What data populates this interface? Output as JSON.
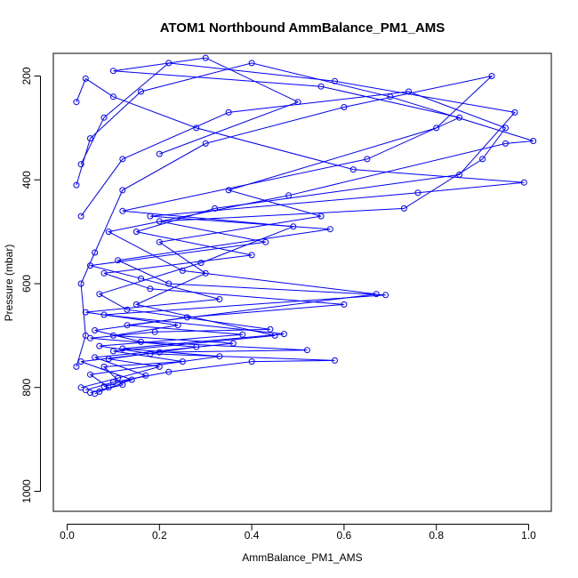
{
  "chart_data": {
    "type": "line",
    "title": "ATOM1 Northbound AmmBalance_PM1_AMS",
    "xlabel": "AmmBalance_PM1_AMS",
    "ylabel": "Pressure (mbar)",
    "xlim": [
      0.0,
      1.0
    ],
    "ylim": [
      1000,
      160
    ],
    "y_reversed": true,
    "x_ticks": [
      0.0,
      0.2,
      0.4,
      0.6,
      0.8,
      1.0
    ],
    "x_tick_labels": [
      "0.0",
      "0.2",
      "0.4",
      "0.6",
      "0.8",
      "1.0"
    ],
    "y_ticks": [
      200,
      400,
      600,
      800,
      1000
    ],
    "y_tick_labels": [
      "200",
      "400",
      "600",
      "800",
      "1000"
    ],
    "grid": false,
    "legend": "none",
    "marker": "open-circle",
    "color": "#0000ff",
    "series": [
      {
        "values": [
          [
            0.05,
            810
          ],
          [
            0.12,
            795
          ],
          [
            0.08,
            760
          ],
          [
            0.25,
            750
          ],
          [
            0.1,
            730
          ],
          [
            0.45,
            700
          ],
          [
            0.15,
            640
          ],
          [
            0.3,
            580
          ],
          [
            0.2,
            520
          ],
          [
            0.55,
            470
          ],
          [
            0.35,
            420
          ],
          [
            0.8,
            300
          ],
          [
            0.92,
            200
          ],
          [
            0.6,
            260
          ],
          [
            0.3,
            330
          ],
          [
            0.12,
            420
          ],
          [
            0.06,
            540
          ],
          [
            0.03,
            600
          ],
          [
            0.04,
            700
          ],
          [
            0.02,
            760
          ]
        ]
      },
      {
        "values": [
          [
            0.04,
            805
          ],
          [
            0.1,
            790
          ],
          [
            0.22,
            770
          ],
          [
            0.4,
            750
          ],
          [
            0.58,
            748
          ],
          [
            0.18,
            735
          ],
          [
            0.07,
            720
          ],
          [
            0.38,
            698
          ],
          [
            0.13,
            680
          ],
          [
            0.67,
            620
          ],
          [
            0.25,
            575
          ],
          [
            0.09,
            500
          ],
          [
            0.48,
            430
          ],
          [
            0.95,
            330
          ],
          [
            1.01,
            325
          ],
          [
            0.7,
            240
          ],
          [
            0.4,
            175
          ],
          [
            0.16,
            230
          ],
          [
            0.05,
            320
          ],
          [
            0.02,
            410
          ]
        ]
      },
      {
        "values": [
          [
            0.06,
            812
          ],
          [
            0.09,
            800
          ],
          [
            0.05,
            775
          ],
          [
            0.33,
            740
          ],
          [
            0.12,
            725
          ],
          [
            0.47,
            697
          ],
          [
            0.08,
            660
          ],
          [
            0.69,
            622
          ],
          [
            0.22,
            600
          ],
          [
            0.11,
            555
          ],
          [
            0.57,
            495
          ],
          [
            0.18,
            470
          ],
          [
            0.76,
            425
          ],
          [
            0.99,
            405
          ],
          [
            0.62,
            380
          ],
          [
            0.28,
            300
          ],
          [
            0.1,
            240
          ],
          [
            0.04,
            205
          ],
          [
            0.02,
            250
          ]
        ]
      },
      {
        "values": [
          [
            0.07,
            808
          ],
          [
            0.14,
            785
          ],
          [
            0.03,
            750
          ],
          [
            0.2,
            732
          ],
          [
            0.52,
            728
          ],
          [
            0.16,
            712
          ],
          [
            0.06,
            690
          ],
          [
            0.26,
            665
          ],
          [
            0.6,
            640
          ],
          [
            0.18,
            610
          ],
          [
            0.08,
            580
          ],
          [
            0.4,
            545
          ],
          [
            0.15,
            500
          ],
          [
            0.32,
            455
          ],
          [
            0.85,
            390
          ],
          [
            0.97,
            270
          ],
          [
            0.58,
            210
          ],
          [
            0.22,
            175
          ],
          [
            0.08,
            280
          ],
          [
            0.03,
            370
          ]
        ]
      },
      {
        "values": [
          [
            0.03,
            800
          ],
          [
            0.11,
            782
          ],
          [
            0.2,
            760
          ],
          [
            0.09,
            745
          ],
          [
            0.28,
            722
          ],
          [
            0.05,
            705
          ],
          [
            0.19,
            693
          ],
          [
            0.44,
            688
          ],
          [
            0.13,
            650
          ],
          [
            0.07,
            620
          ],
          [
            0.29,
            560
          ],
          [
            0.49,
            490
          ],
          [
            0.12,
            460
          ],
          [
            0.65,
            360
          ],
          [
            0.85,
            280
          ],
          [
            0.55,
            220
          ],
          [
            0.1,
            190
          ],
          [
            0.3,
            165
          ],
          [
            0.5,
            250
          ],
          [
            0.2,
            350
          ]
        ]
      },
      {
        "values": [
          [
            0.08,
            798
          ],
          [
            0.17,
            777
          ],
          [
            0.06,
            742
          ],
          [
            0.36,
            715
          ],
          [
            0.1,
            700
          ],
          [
            0.24,
            680
          ],
          [
            0.04,
            655
          ],
          [
            0.33,
            630
          ],
          [
            0.16,
            590
          ],
          [
            0.05,
            565
          ],
          [
            0.43,
            520
          ],
          [
            0.2,
            480
          ],
          [
            0.73,
            455
          ],
          [
            0.9,
            360
          ],
          [
            0.95,
            300
          ],
          [
            0.74,
            230
          ],
          [
            0.35,
            270
          ],
          [
            0.12,
            360
          ],
          [
            0.03,
            470
          ]
        ]
      }
    ]
  }
}
